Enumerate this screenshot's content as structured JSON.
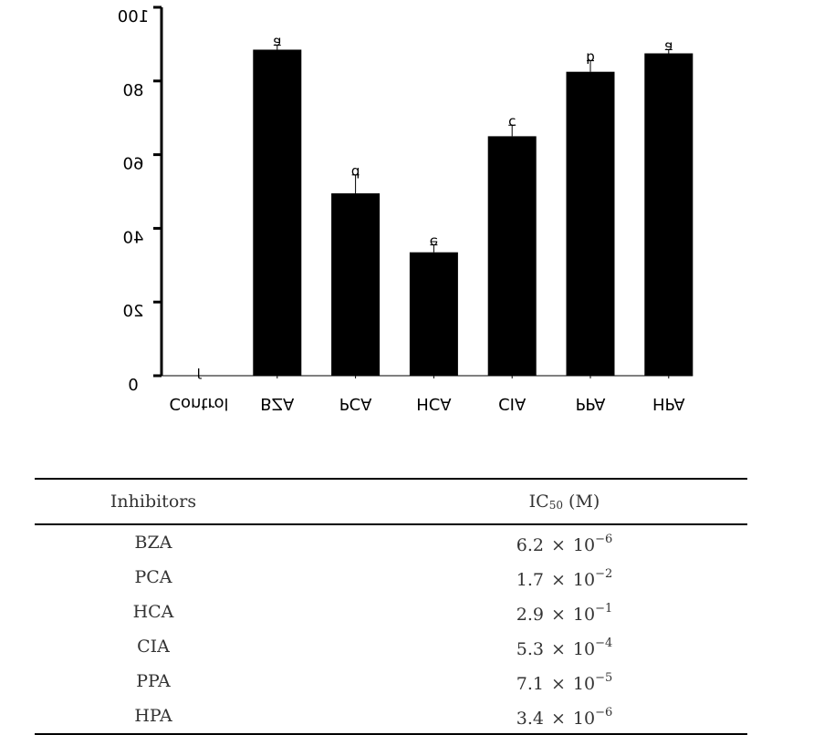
{
  "chart_data": {
    "type": "bar",
    "categories": [
      "Control",
      "BZA",
      "PCA",
      "HCA",
      "CIA",
      "PPA",
      "HPA"
    ],
    "values": [
      0,
      88.5,
      49.5,
      33.5,
      65,
      82.5,
      87.5
    ],
    "errors": [
      0,
      1.2,
      5,
      2,
      3,
      3,
      1
    ],
    "significance": [
      "f",
      "a",
      "d",
      "e",
      "c",
      "b",
      "a"
    ],
    "yticks": [
      0,
      20,
      40,
      60,
      80,
      100
    ],
    "ylim": [
      0,
      100
    ],
    "title": "",
    "xlabel": "",
    "ylabel": "",
    "bar_color": "#000000"
  },
  "table": {
    "header": {
      "inhibitors": "Inhibitors",
      "ic50_main": "IC",
      "ic50_sub": "50",
      "ic50_unit": "(M)"
    },
    "rows": [
      {
        "name": "BZA",
        "mantissa": "6.2",
        "times": "×",
        "base": "10",
        "exp": "−6"
      },
      {
        "name": "PCA",
        "mantissa": "1.7",
        "times": "×",
        "base": "10",
        "exp": "−2"
      },
      {
        "name": "HCA",
        "mantissa": "2.9",
        "times": "×",
        "base": "10",
        "exp": "−1"
      },
      {
        "name": "CIA",
        "mantissa": "5.3",
        "times": "×",
        "base": "10",
        "exp": "−4"
      },
      {
        "name": "PPA",
        "mantissa": "7.1",
        "times": "×",
        "base": "10",
        "exp": "−5"
      },
      {
        "name": "HPA",
        "mantissa": "3.4",
        "times": "×",
        "base": "10",
        "exp": "−6"
      }
    ]
  }
}
